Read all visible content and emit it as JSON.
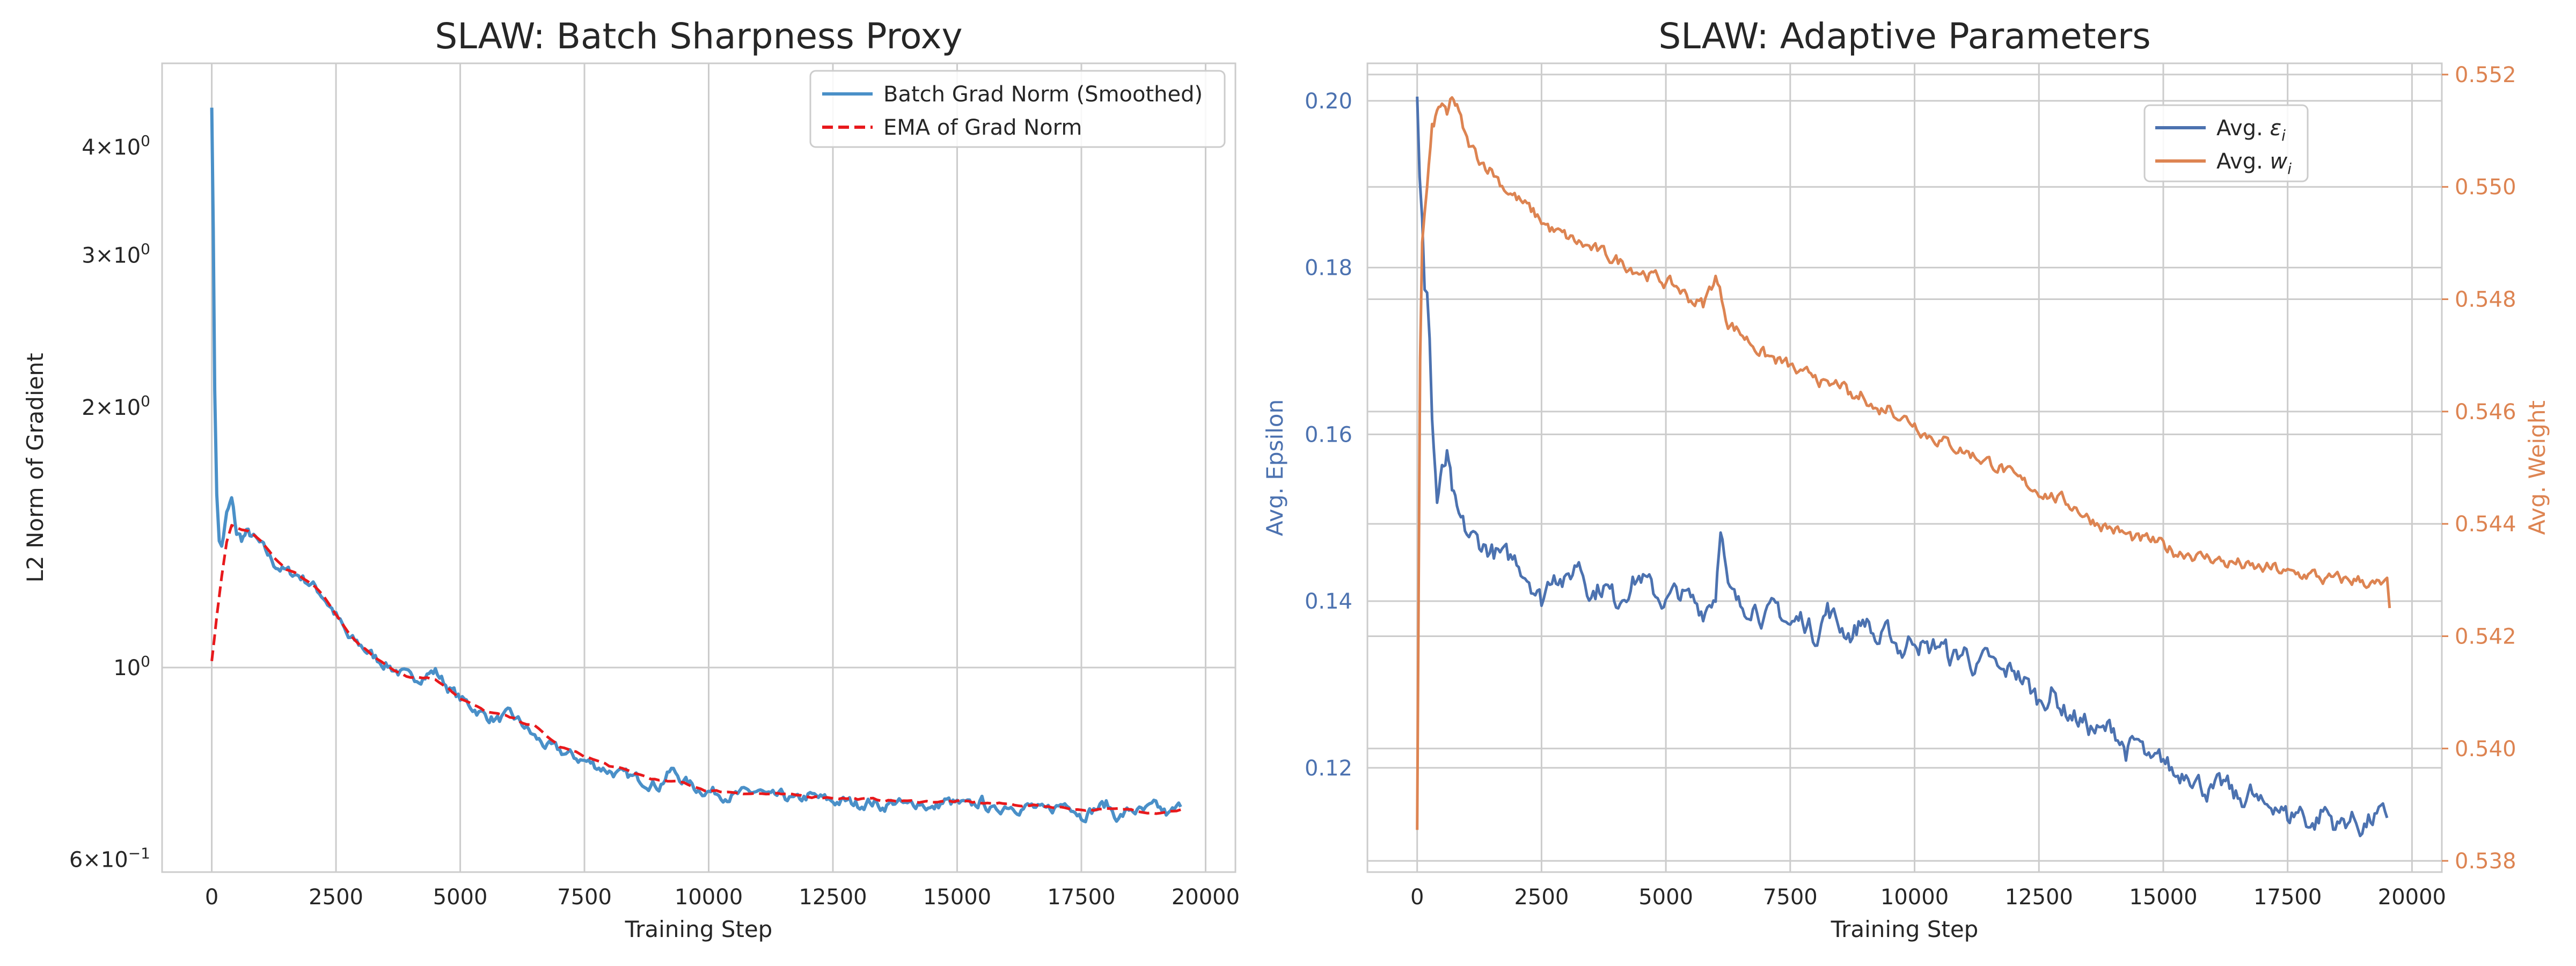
{
  "chart_data": [
    {
      "type": "line",
      "title": "SLAW: Batch Sharpness Proxy",
      "xlabel": "Training Step",
      "ylabel": "L2 Norm of Gradient",
      "yscale": "log",
      "xlim": [
        -1000,
        20600
      ],
      "ylim": [
        0.58,
        5.0
      ],
      "xticks": [
        0,
        2500,
        5000,
        7500,
        10000,
        12500,
        15000,
        17500,
        20000
      ],
      "xtick_labels": [
        "0",
        "2500",
        "5000",
        "7500",
        "10000",
        "12500",
        "15000",
        "17500",
        "20000"
      ],
      "yticks": [
        {
          "value": 4,
          "mant": "4",
          "exp": "0"
        },
        {
          "value": 3,
          "mant": "3",
          "exp": "0"
        },
        {
          "value": 2,
          "mant": "2",
          "exp": "0"
        },
        {
          "value": 1,
          "mant": "",
          "exp": "0"
        },
        {
          "value": 0.6,
          "mant": "6",
          "exp": "−1"
        }
      ],
      "grid": true,
      "legend": {
        "position": "top-right"
      },
      "series": [
        {
          "name": "Batch Grad Norm (Smoothed)",
          "color": "#4a90c8",
          "dash": "solid",
          "x": [
            0,
            30,
            60,
            100,
            150,
            200,
            300,
            400,
            500,
            600,
            700,
            800,
            1000,
            1250,
            1500,
            1750,
            2000,
            2250,
            2500,
            2750,
            3000,
            3250,
            3500,
            3750,
            4000,
            4250,
            4500,
            4750,
            5000,
            5250,
            5500,
            5750,
            6000,
            6250,
            6500,
            6750,
            7000,
            7250,
            7500,
            7750,
            8000,
            8250,
            8500,
            8750,
            9000,
            9250,
            9500,
            9750,
            10000,
            10250,
            10500,
            10750,
            11000,
            11250,
            11500,
            11750,
            12000,
            12250,
            12500,
            12750,
            13000,
            13250,
            13500,
            13750,
            14000,
            14250,
            14500,
            14750,
            15000,
            15250,
            15500,
            15750,
            16000,
            16250,
            16500,
            16750,
            17000,
            17250,
            17500,
            17750,
            18000,
            18250,
            18500,
            18750,
            19000,
            19250,
            19500
          ],
          "y": [
            4.5,
            3.2,
            2.1,
            1.6,
            1.4,
            1.38,
            1.5,
            1.56,
            1.43,
            1.41,
            1.43,
            1.42,
            1.38,
            1.32,
            1.29,
            1.28,
            1.25,
            1.21,
            1.15,
            1.08,
            1.06,
            1.03,
            1.01,
            0.99,
            0.97,
            0.98,
            0.99,
            0.95,
            0.92,
            0.9,
            0.88,
            0.87,
            0.88,
            0.86,
            0.83,
            0.81,
            0.8,
            0.79,
            0.78,
            0.77,
            0.76,
            0.75,
            0.745,
            0.74,
            0.73,
            0.76,
            0.74,
            0.725,
            0.72,
            0.715,
            0.71,
            0.715,
            0.72,
            0.705,
            0.71,
            0.7,
            0.71,
            0.705,
            0.7,
            0.7,
            0.695,
            0.7,
            0.69,
            0.7,
            0.69,
            0.7,
            0.685,
            0.7,
            0.695,
            0.69,
            0.7,
            0.68,
            0.695,
            0.69,
            0.69,
            0.68,
            0.69,
            0.7,
            0.675,
            0.685,
            0.695,
            0.67,
            0.685,
            0.68,
            0.69,
            0.675,
            0.69
          ]
        },
        {
          "name": "EMA of Grad Norm",
          "color": "#e8191c",
          "dash": "dashed",
          "x": [
            0,
            50,
            100,
            200,
            300,
            400,
            500,
            600,
            800,
            1000,
            1250,
            1500,
            1750,
            2000,
            2250,
            2500,
            2750,
            3000,
            3250,
            3500,
            3750,
            4000,
            4250,
            4500,
            4750,
            5000,
            5500,
            6000,
            6500,
            7000,
            7500,
            8000,
            8500,
            9000,
            9500,
            10000,
            11000,
            12000,
            13000,
            14000,
            15000,
            16000,
            17000,
            17500,
            18000,
            18500,
            19000,
            19500
          ],
          "y": [
            1.02,
            1.08,
            1.15,
            1.28,
            1.4,
            1.46,
            1.45,
            1.44,
            1.43,
            1.4,
            1.34,
            1.3,
            1.28,
            1.25,
            1.21,
            1.15,
            1.1,
            1.06,
            1.03,
            1.01,
            0.99,
            0.975,
            0.975,
            0.97,
            0.95,
            0.92,
            0.89,
            0.875,
            0.855,
            0.81,
            0.79,
            0.77,
            0.755,
            0.74,
            0.735,
            0.72,
            0.715,
            0.71,
            0.705,
            0.7,
            0.7,
            0.695,
            0.69,
            0.685,
            0.685,
            0.685,
            0.68,
            0.685
          ]
        }
      ]
    },
    {
      "type": "line",
      "title": "SLAW: Adaptive Parameters",
      "xlabel": "Training Step",
      "ylabel": "Avg. Epsilon",
      "ylabel_right": "Avg. Weight",
      "xlim": [
        -1000,
        20600
      ],
      "ylim": [
        0.1075,
        0.2045
      ],
      "ylim_right": [
        0.5378,
        0.5522
      ],
      "xticks": [
        0,
        2500,
        5000,
        7500,
        10000,
        12500,
        15000,
        17500,
        20000
      ],
      "xtick_labels": [
        "0",
        "2500",
        "5000",
        "7500",
        "10000",
        "12500",
        "15000",
        "17500",
        "20000"
      ],
      "yticks": [
        0.12,
        0.14,
        0.16,
        0.18,
        0.2
      ],
      "ytick_labels": [
        "0.12",
        "0.14",
        "0.16",
        "0.18",
        "0.20"
      ],
      "yticks_right": [
        0.538,
        0.54,
        0.542,
        0.544,
        0.546,
        0.548,
        0.55,
        0.552
      ],
      "ytick_labels_right": [
        "0.538",
        "0.540",
        "0.542",
        "0.544",
        "0.546",
        "0.548",
        "0.550",
        "0.552"
      ],
      "grid": true,
      "legend": {
        "position": "top-right"
      },
      "series": [
        {
          "name": "Avg. εi",
          "label_main": "Avg. ",
          "label_sym": "ε",
          "label_sub": "i",
          "color": "#4c72b0",
          "axis": "left",
          "x": [
            0,
            50,
            100,
            150,
            200,
            250,
            300,
            400,
            500,
            600,
            700,
            800,
            1000,
            1250,
            1500,
            1750,
            2000,
            2250,
            2500,
            2750,
            3000,
            3250,
            3500,
            3750,
            4000,
            4250,
            4500,
            4750,
            5000,
            5250,
            5500,
            5750,
            6000,
            6100,
            6250,
            6500,
            6750,
            7000,
            7250,
            7500,
            7750,
            8000,
            8250,
            8500,
            8750,
            9000,
            9250,
            9500,
            9750,
            10000,
            10250,
            10500,
            10750,
            11000,
            11250,
            11500,
            11750,
            12000,
            12250,
            12500,
            12750,
            13000,
            13250,
            13500,
            13750,
            14000,
            14250,
            14500,
            14750,
            15000,
            15250,
            15500,
            15750,
            16000,
            16250,
            16500,
            16750,
            17000,
            17250,
            17500,
            17750,
            18000,
            18250,
            18500,
            18750,
            19000,
            19250,
            19500
          ],
          "y": [
            0.2,
            0.19,
            0.185,
            0.176,
            0.177,
            0.172,
            0.162,
            0.152,
            0.155,
            0.157,
            0.153,
            0.15,
            0.148,
            0.147,
            0.146,
            0.145,
            0.145,
            0.143,
            0.14,
            0.144,
            0.142,
            0.145,
            0.141,
            0.142,
            0.14,
            0.142,
            0.143,
            0.141,
            0.14,
            0.141,
            0.14,
            0.139,
            0.141,
            0.15,
            0.141,
            0.139,
            0.14,
            0.138,
            0.139,
            0.137,
            0.138,
            0.136,
            0.139,
            0.137,
            0.136,
            0.138,
            0.135,
            0.136,
            0.134,
            0.136,
            0.134,
            0.135,
            0.133,
            0.134,
            0.132,
            0.133,
            0.131,
            0.132,
            0.13,
            0.128,
            0.129,
            0.127,
            0.126,
            0.125,
            0.124,
            0.125,
            0.122,
            0.123,
            0.12,
            0.121,
            0.119,
            0.12,
            0.118,
            0.117,
            0.118,
            0.116,
            0.117,
            0.115,
            0.116,
            0.114,
            0.115,
            0.113,
            0.115,
            0.113,
            0.114,
            0.113,
            0.114,
            0.114
          ]
        },
        {
          "name": "Avg. wi",
          "label_main": "Avg. ",
          "label_sym": "w",
          "label_sub": "i",
          "color": "#dd8452",
          "axis": "right",
          "x": [
            0,
            30,
            60,
            100,
            150,
            200,
            300,
            400,
            500,
            600,
            700,
            800,
            1000,
            1250,
            1500,
            1750,
            2000,
            2250,
            2500,
            2750,
            3000,
            3250,
            3500,
            3750,
            4000,
            4250,
            4500,
            4750,
            5000,
            5250,
            5500,
            5750,
            6000,
            6250,
            6500,
            6750,
            7000,
            7250,
            7500,
            7750,
            8000,
            8250,
            8500,
            8750,
            9000,
            9250,
            9500,
            9750,
            10000,
            10250,
            10500,
            10750,
            11000,
            11250,
            11500,
            11750,
            12000,
            12250,
            12500,
            12750,
            13000,
            13250,
            13500,
            13750,
            14000,
            14250,
            14500,
            14750,
            15000,
            15250,
            15500,
            15750,
            16000,
            16250,
            16500,
            16750,
            17000,
            17250,
            17500,
            17750,
            18000,
            18250,
            18500,
            18750,
            19000,
            19250,
            19500,
            19550
          ],
          "y": [
            0.5386,
            0.543,
            0.547,
            0.549,
            0.5495,
            0.55,
            0.551,
            0.5513,
            0.5515,
            0.5512,
            0.5516,
            0.5514,
            0.5508,
            0.5505,
            0.5503,
            0.55,
            0.5498,
            0.5496,
            0.5494,
            0.5492,
            0.5491,
            0.549,
            0.5489,
            0.5488,
            0.5487,
            0.5486,
            0.5485,
            0.5484,
            0.5483,
            0.5482,
            0.548,
            0.5479,
            0.5484,
            0.5476,
            0.5474,
            0.5472,
            0.547,
            0.5469,
            0.5468,
            0.5466,
            0.5467,
            0.5464,
            0.5465,
            0.5462,
            0.5463,
            0.546,
            0.5461,
            0.5459,
            0.5458,
            0.5456,
            0.5455,
            0.5454,
            0.5453,
            0.5452,
            0.5451,
            0.545,
            0.5448,
            0.5447,
            0.5446,
            0.5445,
            0.5444,
            0.5443,
            0.5441,
            0.544,
            0.5439,
            0.5438,
            0.5437,
            0.5437,
            0.5436,
            0.5435,
            0.5435,
            0.5434,
            0.5434,
            0.5433,
            0.5433,
            0.5432,
            0.5432,
            0.5432,
            0.5431,
            0.5431,
            0.5431,
            0.543,
            0.543,
            0.543,
            0.543,
            0.5429,
            0.5429,
            0.5425
          ]
        }
      ]
    }
  ]
}
